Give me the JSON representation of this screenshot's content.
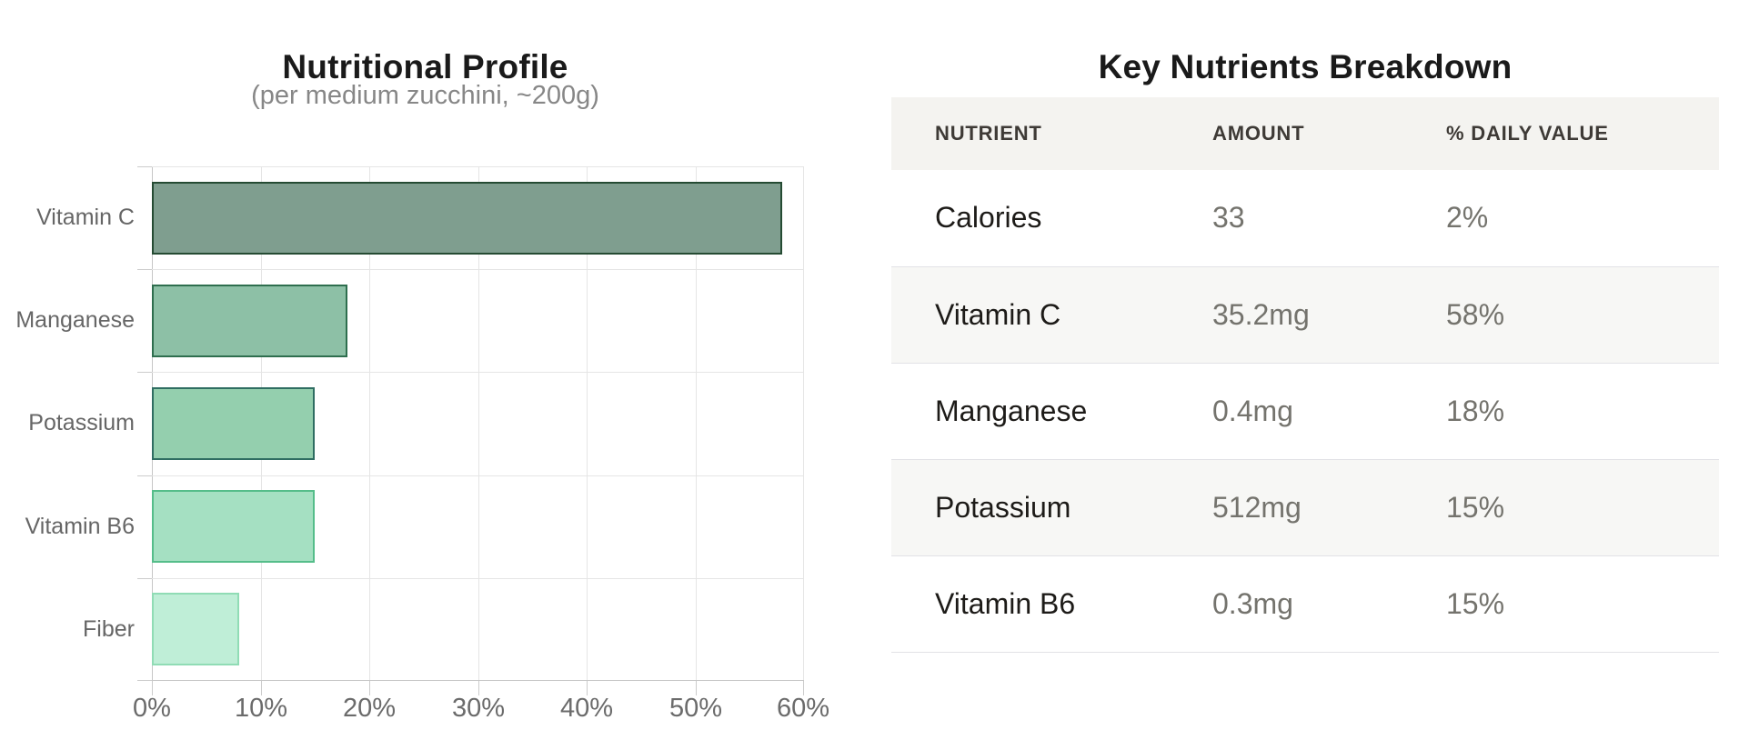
{
  "chart_data": {
    "type": "bar",
    "orientation": "horizontal",
    "title": "Nutritional Profile",
    "subtitle": "(per medium zucchini, ~200g)",
    "categories": [
      "Vitamin C",
      "Manganese",
      "Potassium",
      "Vitamin B6",
      "Fiber"
    ],
    "values": [
      58,
      18,
      15,
      15,
      8
    ],
    "value_unit": "% daily value",
    "xlim": [
      0,
      60
    ],
    "x_tick_values": [
      0,
      10,
      20,
      30,
      40,
      50,
      60
    ],
    "x_ticks": [
      "0%",
      "10%",
      "20%",
      "30%",
      "40%",
      "50%",
      "60%"
    ],
    "grid": true,
    "legend": false,
    "fill_colors": [
      "#7f9e8f",
      "#8dc0a6",
      "#94cfae",
      "#a5e0c2",
      "#bfeed7"
    ],
    "border_colors": [
      "#254b33",
      "#2e6e4e",
      "#2f6d62",
      "#55bd8a",
      "#90dcb5"
    ]
  },
  "table": {
    "title": "Key Nutrients Breakdown",
    "columns": [
      "NUTRIENT",
      "AMOUNT",
      "% DAILY VALUE"
    ],
    "rows": [
      {
        "nutrient": "Calories",
        "amount": "33",
        "daily_value": "2%"
      },
      {
        "nutrient": "Vitamin C",
        "amount": "35.2mg",
        "daily_value": "58%"
      },
      {
        "nutrient": "Manganese",
        "amount": "0.4mg",
        "daily_value": "18%"
      },
      {
        "nutrient": "Potassium",
        "amount": "512mg",
        "daily_value": "15%"
      },
      {
        "nutrient": "Vitamin B6",
        "amount": "0.3mg",
        "daily_value": "15%"
      }
    ]
  },
  "colors": {
    "background": "#ffffff",
    "gridline": "#e5e5e5",
    "axis_line": "#c6c6c6",
    "title_text": "#1a1a1a",
    "subtitle_text": "#878787",
    "axis_label_text": "#6b6b6b",
    "table_header_bg": "#f4f3f0",
    "table_stripe_bg": "#f7f7f5",
    "table_border": "#e2e2e6",
    "table_value_text": "#74736d",
    "table_nutrient_text": "#1d1b18"
  }
}
